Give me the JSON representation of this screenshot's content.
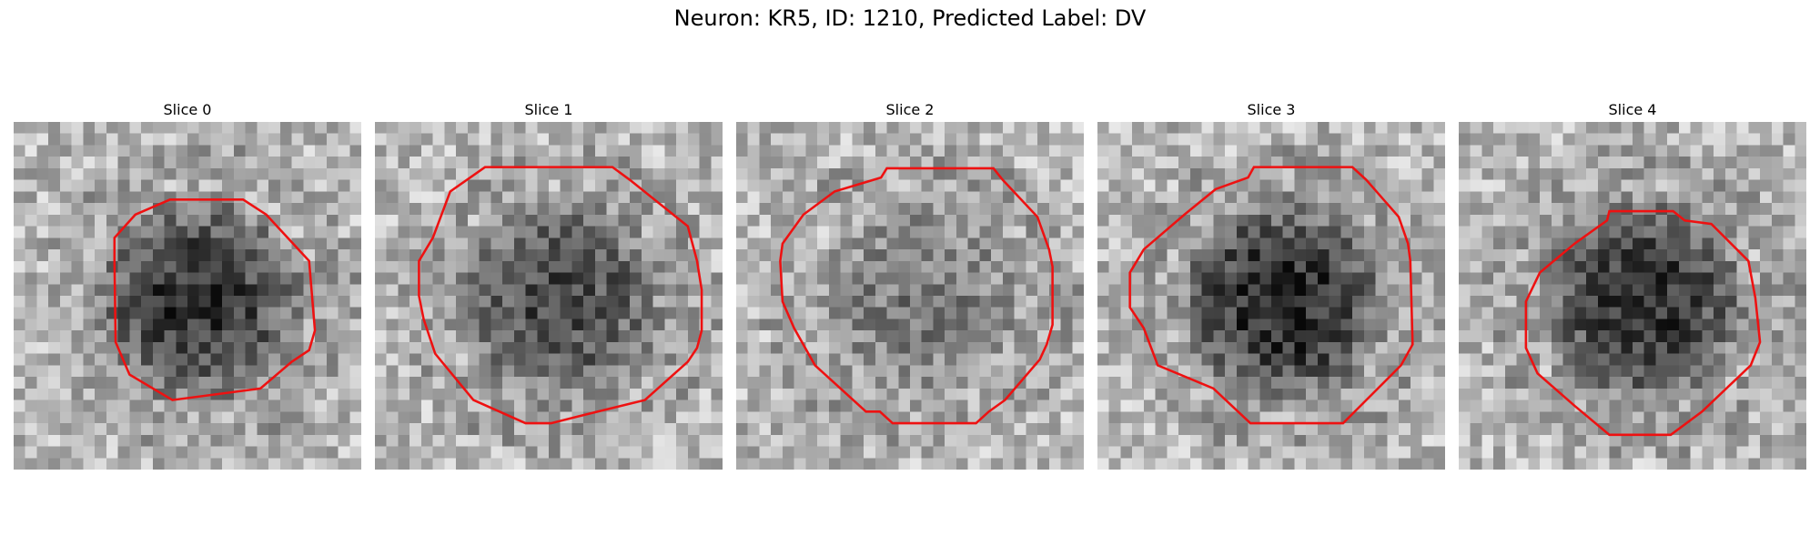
{
  "figure": {
    "title": "Neuron: KR5, ID: 1210, Predicted Label: DV"
  },
  "contour_color": "#ee1111",
  "slices": [
    {
      "title": "Slice 0",
      "seed": 11,
      "blob_strength": 0.55
    },
    {
      "title": "Slice 1",
      "seed": 23,
      "blob_strength": 0.45
    },
    {
      "title": "Slice 2",
      "seed": 37,
      "blob_strength": 0.25
    },
    {
      "title": "Slice 3",
      "seed": 41,
      "blob_strength": 0.6
    },
    {
      "title": "Slice 4",
      "seed": 59,
      "blob_strength": 0.55
    }
  ]
}
